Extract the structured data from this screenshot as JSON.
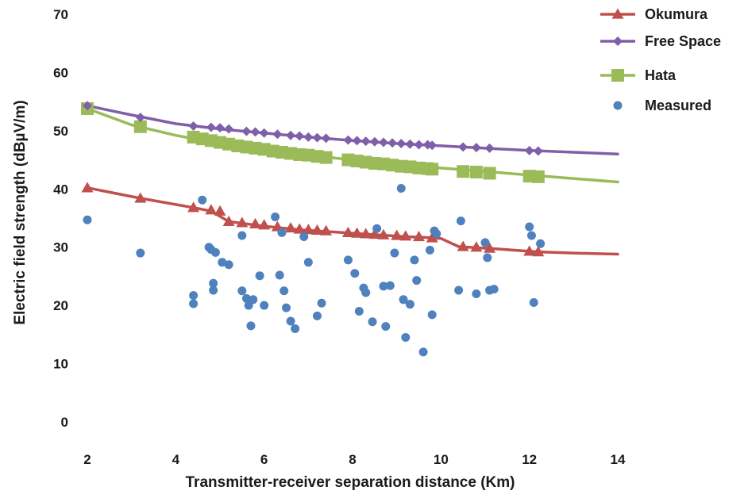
{
  "chart_data": {
    "type": "scatter",
    "xlabel": "Transmitter-receiver separation distance (Km)",
    "ylabel": "Electric field strength (dBµV/m)",
    "xlim": [
      2,
      14
    ],
    "ylim": [
      0,
      70
    ],
    "xticks": [
      2,
      4,
      6,
      8,
      10,
      12,
      14
    ],
    "yticks": [
      0,
      10,
      20,
      30,
      40,
      50,
      60,
      70
    ],
    "grid": false,
    "legend_position": "top-right",
    "series": [
      {
        "name": "Okumura",
        "kind": "line",
        "marker": "triangle",
        "color": "#c0504d",
        "x": [
          2,
          3.2,
          4.4,
          4.8,
          5.2,
          5.6,
          6.0,
          6.4,
          6.8,
          7.2,
          7.6,
          8.0,
          8.4,
          8.8,
          9.2,
          9.6,
          10.0,
          10.4,
          10.8,
          11.1,
          12.0,
          12.2,
          13.0,
          14.0
        ],
        "y": [
          40.2,
          38.4,
          36.8,
          36.2,
          34.4,
          34.0,
          33.6,
          33.3,
          33.0,
          32.8,
          32.6,
          32.4,
          32.2,
          32.0,
          31.8,
          31.7,
          31.5,
          30.1,
          29.9,
          29.8,
          29.3,
          29.2,
          29.0,
          28.8
        ],
        "markers_x": [
          2,
          3.2,
          4.4,
          4.8,
          5.0,
          5.2,
          5.5,
          5.8,
          6.0,
          6.3,
          6.6,
          6.8,
          7.0,
          7.2,
          7.4,
          7.9,
          8.1,
          8.3,
          8.5,
          8.7,
          9.0,
          9.2,
          9.5,
          9.8,
          10.5,
          10.8,
          11.1,
          12.0,
          12.2
        ],
        "markers_y": [
          40.2,
          38.4,
          36.8,
          36.4,
          36.2,
          34.4,
          34.2,
          34.0,
          33.8,
          33.5,
          33.3,
          33.1,
          33.0,
          32.9,
          32.8,
          32.5,
          32.4,
          32.3,
          32.2,
          32.1,
          32.0,
          31.9,
          31.8,
          31.6,
          30.1,
          30.0,
          29.8,
          29.3,
          29.2
        ]
      },
      {
        "name": "Free Space",
        "kind": "line",
        "marker": "diamond",
        "color": "#7f5fa9",
        "x": [
          2,
          3,
          4,
          5,
          6,
          7,
          8,
          9,
          10,
          11,
          12,
          13,
          14
        ],
        "y": [
          54.3,
          52.7,
          51.2,
          50.3,
          49.6,
          48.9,
          48.3,
          47.8,
          47.4,
          47.0,
          46.6,
          46.3,
          46.0
        ],
        "markers_x": [
          2,
          3.2,
          4.4,
          4.8,
          5.0,
          5.2,
          5.6,
          5.8,
          6.0,
          6.3,
          6.6,
          6.8,
          7.0,
          7.2,
          7.4,
          7.9,
          8.1,
          8.3,
          8.5,
          8.7,
          8.9,
          9.1,
          9.3,
          9.5,
          9.7,
          9.8,
          10.5,
          10.8,
          11.1,
          12.0,
          12.2
        ],
        "markers_y": [
          54.3,
          52.3,
          50.8,
          50.6,
          50.5,
          50.3,
          49.9,
          49.8,
          49.6,
          49.4,
          49.2,
          49.1,
          48.9,
          48.8,
          48.7,
          48.4,
          48.3,
          48.2,
          48.1,
          48.0,
          47.9,
          47.8,
          47.7,
          47.6,
          47.6,
          47.5,
          47.2,
          47.1,
          47.0,
          46.6,
          46.5
        ]
      },
      {
        "name": "Hata",
        "kind": "line",
        "marker": "square",
        "color": "#9bbb59",
        "x": [
          2,
          3,
          4,
          5,
          6,
          7,
          8,
          9,
          10,
          11,
          12,
          13,
          14
        ],
        "y": [
          53.8,
          51.0,
          49.2,
          47.8,
          46.7,
          45.8,
          45.0,
          44.3,
          43.6,
          43.0,
          42.4,
          41.8,
          41.2
        ],
        "markers_x": [
          2,
          3.2,
          4.4,
          4.6,
          4.8,
          5.0,
          5.2,
          5.4,
          5.6,
          5.8,
          6.0,
          6.2,
          6.4,
          6.6,
          6.8,
          7.0,
          7.2,
          7.4,
          7.9,
          8.1,
          8.3,
          8.5,
          8.7,
          8.9,
          9.1,
          9.3,
          9.5,
          9.7,
          9.8,
          10.5,
          10.8,
          11.1,
          12.0,
          12.2
        ],
        "markers_y": [
          53.8,
          50.7,
          48.9,
          48.6,
          48.3,
          48.0,
          47.7,
          47.4,
          47.2,
          47.0,
          46.8,
          46.5,
          46.3,
          46.1,
          45.9,
          45.8,
          45.6,
          45.4,
          45.0,
          44.8,
          44.6,
          44.4,
          44.3,
          44.1,
          43.9,
          43.8,
          43.6,
          43.5,
          43.4,
          43.0,
          42.9,
          42.7,
          42.2,
          42.1
        ]
      },
      {
        "name": "Measured",
        "kind": "scatter",
        "marker": "circle",
        "color": "#4f81bd",
        "x": [
          2.0,
          3.2,
          4.4,
          4.4,
          4.6,
          4.75,
          4.8,
          4.85,
          4.85,
          4.9,
          5.05,
          5.2,
          5.5,
          5.5,
          5.6,
          5.65,
          5.7,
          5.75,
          5.9,
          6.0,
          6.25,
          6.35,
          6.4,
          6.45,
          6.5,
          6.6,
          6.7,
          6.9,
          7.0,
          7.2,
          7.3,
          7.9,
          8.05,
          8.15,
          8.25,
          8.3,
          8.45,
          8.55,
          8.7,
          8.75,
          8.85,
          8.95,
          9.1,
          9.15,
          9.2,
          9.3,
          9.4,
          9.45,
          9.6,
          9.75,
          9.8,
          9.85,
          9.9,
          10.4,
          10.45,
          10.8,
          11.0,
          11.05,
          11.1,
          11.2,
          12.0,
          12.05,
          12.1,
          12.25
        ],
        "y": [
          34.7,
          29.0,
          21.7,
          20.3,
          38.1,
          30.0,
          29.6,
          23.8,
          22.6,
          29.1,
          27.4,
          27.0,
          32.0,
          22.5,
          21.2,
          20.0,
          16.5,
          21.0,
          25.1,
          20.0,
          35.2,
          25.2,
          32.5,
          22.5,
          19.6,
          17.3,
          16.0,
          31.8,
          27.4,
          18.2,
          20.4,
          27.8,
          25.5,
          19.0,
          23.0,
          22.2,
          17.2,
          33.2,
          23.3,
          16.4,
          23.4,
          29.0,
          40.1,
          21.0,
          14.5,
          20.2,
          27.8,
          24.3,
          12.0,
          29.5,
          18.4,
          32.8,
          32.3,
          22.6,
          34.5,
          22.0,
          30.8,
          28.2,
          22.6,
          22.8,
          33.5,
          32.0,
          20.5,
          30.6
        ]
      }
    ]
  }
}
